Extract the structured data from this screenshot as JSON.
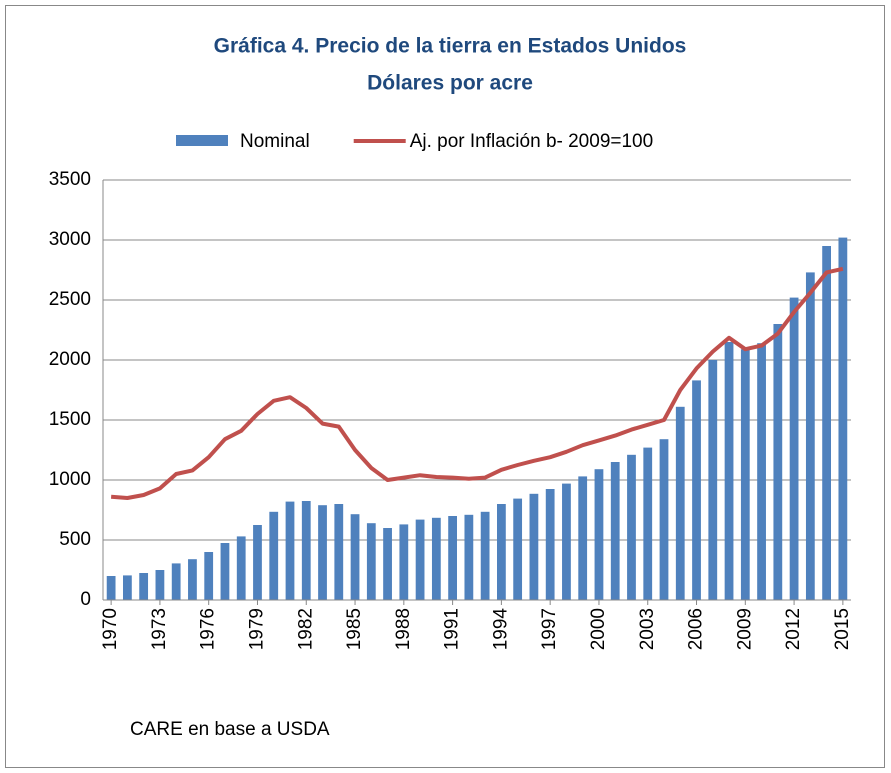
{
  "chart_data": {
    "type": "bar_line",
    "title": "Gráfica 4. Precio de la tierra en Estados Unidos",
    "subtitle": "Dólares por acre",
    "source": "CARE en base a USDA",
    "legend": "top",
    "grid": true,
    "x": [
      1970,
      1971,
      1972,
      1973,
      1974,
      1975,
      1976,
      1977,
      1978,
      1979,
      1980,
      1981,
      1982,
      1983,
      1984,
      1985,
      1986,
      1987,
      1988,
      1989,
      1990,
      1991,
      1992,
      1993,
      1994,
      1995,
      1996,
      1997,
      1998,
      1999,
      2000,
      2001,
      2002,
      2003,
      2004,
      2005,
      2006,
      2007,
      2008,
      2009,
      2010,
      2011,
      2012,
      2013,
      2014,
      2015
    ],
    "xlim": [
      1969.5,
      2015.5
    ],
    "xticks": [
      1970,
      1973,
      1976,
      1979,
      1982,
      1985,
      1988,
      1991,
      1994,
      1997,
      2000,
      2003,
      2006,
      2009,
      2012,
      2015
    ],
    "ylim": [
      0,
      3500
    ],
    "yticks": [
      0,
      500,
      1000,
      1500,
      2000,
      2500,
      3000,
      3500
    ],
    "series": [
      {
        "name": "Nominal",
        "type": "bar",
        "color": "#4f81bd",
        "values": [
          200,
          205,
          225,
          250,
          305,
          340,
          400,
          475,
          530,
          625,
          735,
          820,
          825,
          790,
          800,
          715,
          640,
          600,
          630,
          670,
          685,
          700,
          710,
          735,
          800,
          845,
          885,
          925,
          970,
          1030,
          1090,
          1150,
          1210,
          1270,
          1340,
          1610,
          1830,
          2000,
          2150,
          2090,
          2140,
          2300,
          2520,
          2730,
          2950,
          3020
        ]
      },
      {
        "name": "Aj. por Inflación b- 2009=100",
        "type": "line",
        "color": "#c0504d",
        "values": [
          860,
          850,
          875,
          930,
          1050,
          1080,
          1190,
          1340,
          1410,
          1550,
          1660,
          1690,
          1600,
          1470,
          1445,
          1250,
          1100,
          1000,
          1020,
          1040,
          1025,
          1020,
          1010,
          1020,
          1085,
          1125,
          1160,
          1190,
          1235,
          1290,
          1330,
          1370,
          1420,
          1460,
          1500,
          1750,
          1930,
          2070,
          2185,
          2090,
          2120,
          2220,
          2400,
          2560,
          2730,
          2760
        ]
      }
    ]
  }
}
